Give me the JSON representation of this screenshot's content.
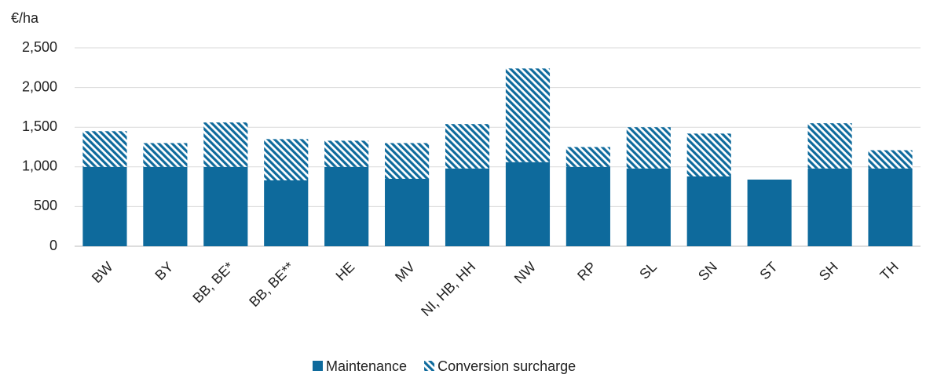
{
  "chart_data": {
    "type": "bar",
    "stacked": true,
    "ylabel": "€/ha",
    "categories": [
      "BW",
      "BY",
      "BB, BE*",
      "BB, BE**",
      "HE",
      "MV",
      "NI, HB, HH",
      "NW",
      "RP",
      "SL",
      "SN",
      "ST",
      "SH",
      "TH"
    ],
    "series": [
      {
        "name": "Maintenance",
        "color": "#0e6a9c",
        "pattern": "solid",
        "values": [
          1000,
          1000,
          1000,
          830,
          1000,
          850,
          980,
          1060,
          1000,
          980,
          880,
          840,
          980,
          980
        ]
      },
      {
        "name": "Conversion surcharge",
        "color": "#0e6a9c",
        "pattern": "hatch",
        "values": [
          450,
          300,
          560,
          520,
          330,
          450,
          560,
          1180,
          250,
          520,
          540,
          0,
          570,
          230
        ]
      }
    ],
    "ylim": [
      0,
      2500
    ],
    "yticks": [
      0,
      500,
      {
        "value": 1000,
        "label": "1,000"
      },
      {
        "value": 1500,
        "label": "1,500"
      },
      {
        "value": 2000,
        "label": "2,000"
      },
      {
        "value": 2500,
        "label": "2,500"
      }
    ],
    "grid": true,
    "legend": "bottom"
  }
}
